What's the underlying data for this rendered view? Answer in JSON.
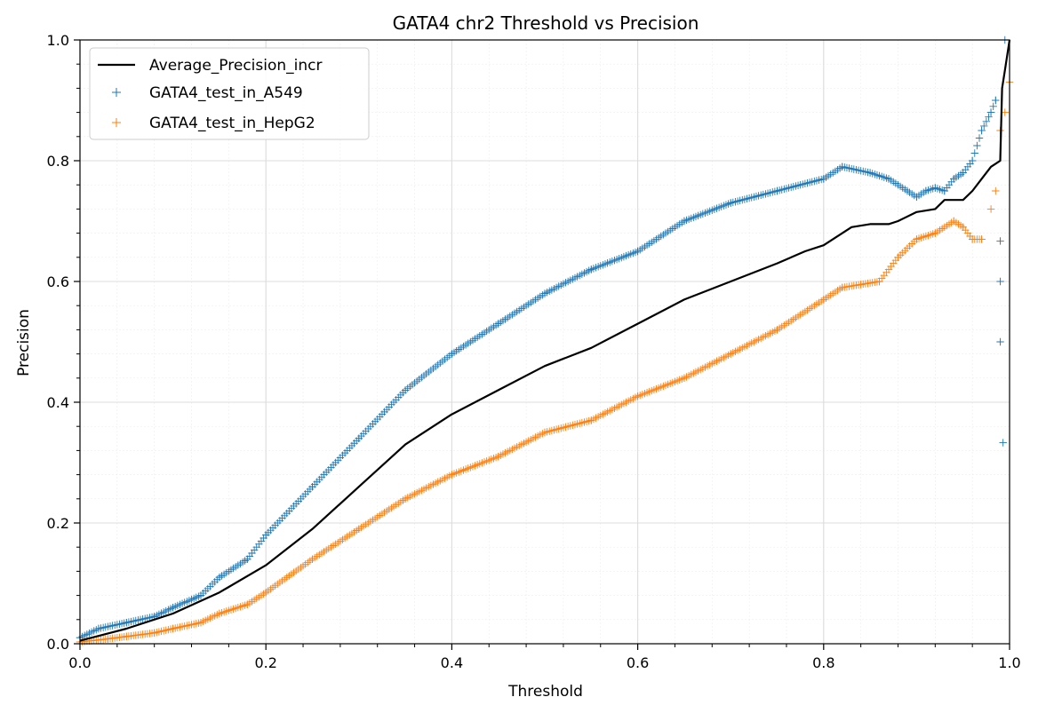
{
  "chart_data": {
    "type": "line",
    "title": "GATA4 chr2 Threshold vs Precision",
    "xlabel": "Threshold",
    "ylabel": "Precision",
    "xlim": [
      0,
      1
    ],
    "ylim": [
      0,
      1
    ],
    "xticks": [
      "0.0",
      "0.2",
      "0.4",
      "0.6",
      "0.8",
      "1.0"
    ],
    "yticks": [
      "0.0",
      "0.2",
      "0.4",
      "0.6",
      "0.8",
      "1.0"
    ],
    "grid": true,
    "minor_grid": true,
    "legend_position": "top-left",
    "series": [
      {
        "name": "Average_Precision_incr",
        "style": "line",
        "color": "#000000",
        "x": [
          0.0,
          0.05,
          0.1,
          0.15,
          0.2,
          0.25,
          0.3,
          0.35,
          0.4,
          0.45,
          0.5,
          0.55,
          0.6,
          0.65,
          0.7,
          0.75,
          0.78,
          0.8,
          0.83,
          0.85,
          0.87,
          0.88,
          0.9,
          0.92,
          0.93,
          0.95,
          0.96,
          0.97,
          0.98,
          0.985,
          0.99,
          0.992,
          0.995,
          1.0
        ],
        "y": [
          0.005,
          0.025,
          0.05,
          0.085,
          0.13,
          0.19,
          0.26,
          0.33,
          0.38,
          0.42,
          0.46,
          0.49,
          0.53,
          0.57,
          0.6,
          0.63,
          0.65,
          0.66,
          0.69,
          0.695,
          0.695,
          0.7,
          0.715,
          0.72,
          0.735,
          0.735,
          0.75,
          0.77,
          0.79,
          0.795,
          0.8,
          0.92,
          0.95,
          1.0
        ]
      },
      {
        "name": "GATA4_test_in_A549",
        "style": "scatter",
        "marker": "+",
        "color": "#1f77b4",
        "x": [
          0.0,
          0.02,
          0.05,
          0.08,
          0.1,
          0.13,
          0.15,
          0.18,
          0.2,
          0.25,
          0.3,
          0.35,
          0.4,
          0.45,
          0.5,
          0.55,
          0.6,
          0.65,
          0.7,
          0.75,
          0.8,
          0.82,
          0.85,
          0.87,
          0.89,
          0.9,
          0.91,
          0.92,
          0.93,
          0.94,
          0.95,
          0.96,
          0.97,
          0.98,
          0.985,
          0.99,
          0.99,
          0.99,
          0.993,
          0.995
        ],
        "y": [
          0.01,
          0.025,
          0.035,
          0.045,
          0.06,
          0.08,
          0.11,
          0.14,
          0.18,
          0.26,
          0.34,
          0.42,
          0.48,
          0.53,
          0.58,
          0.62,
          0.65,
          0.7,
          0.73,
          0.75,
          0.77,
          0.79,
          0.78,
          0.77,
          0.75,
          0.74,
          0.75,
          0.755,
          0.75,
          0.77,
          0.78,
          0.8,
          0.85,
          0.88,
          0.9,
          0.667,
          0.6,
          0.5,
          0.333,
          1.0
        ]
      },
      {
        "name": "GATA4_test_in_HepG2",
        "style": "scatter",
        "marker": "+",
        "color": "#ff7f0e",
        "x": [
          0.0,
          0.03,
          0.05,
          0.08,
          0.1,
          0.13,
          0.15,
          0.18,
          0.2,
          0.25,
          0.3,
          0.35,
          0.4,
          0.45,
          0.5,
          0.55,
          0.6,
          0.65,
          0.7,
          0.75,
          0.8,
          0.82,
          0.84,
          0.86,
          0.88,
          0.9,
          0.92,
          0.94,
          0.95,
          0.96,
          0.97,
          0.98,
          0.985,
          0.99,
          0.995,
          1.0
        ],
        "y": [
          0.003,
          0.008,
          0.012,
          0.018,
          0.025,
          0.035,
          0.05,
          0.065,
          0.085,
          0.14,
          0.19,
          0.24,
          0.28,
          0.31,
          0.35,
          0.37,
          0.41,
          0.44,
          0.48,
          0.52,
          0.57,
          0.59,
          0.595,
          0.6,
          0.64,
          0.67,
          0.68,
          0.7,
          0.69,
          0.67,
          0.67,
          0.72,
          0.75,
          0.85,
          0.88,
          0.93
        ]
      }
    ]
  }
}
